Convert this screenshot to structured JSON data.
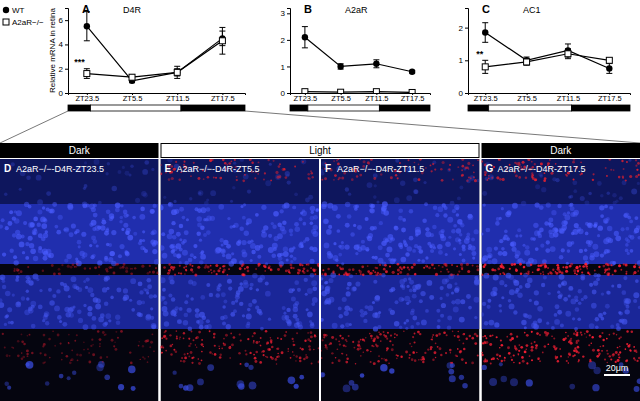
{
  "chart_data": [
    {
      "type": "line",
      "label": "A",
      "title": "D4R",
      "y_label": "Relative mRNA in retina",
      "x": [
        -0.5,
        5.5,
        11.5,
        17.5
      ],
      "xlim": [
        -3,
        20.5
      ],
      "xticks": [
        {
          "value": -0.5,
          "label": "ZT23.5"
        },
        {
          "value": 5.5,
          "label": "ZT5.5"
        },
        {
          "value": 11.5,
          "label": "ZT11.5"
        },
        {
          "value": 17.5,
          "label": "ZT17.5"
        }
      ],
      "ylim": [
        0,
        7
      ],
      "yticks": [
        0,
        2,
        4,
        6
      ],
      "legend": "top-left",
      "light_phases": [
        {
          "state": "dark",
          "start": -3,
          "end": 0
        },
        {
          "state": "light",
          "start": 0,
          "end": 12
        },
        {
          "state": "dark",
          "start": 12,
          "end": 20.5
        }
      ],
      "series": [
        {
          "name": "WT",
          "color": "#000000",
          "marker": "circle",
          "values": [
            5.5,
            1.0,
            1.7,
            4.5
          ],
          "errors": [
            1.2,
            0.15,
            0.5,
            0.6
          ]
        },
        {
          "name": "A2aR−/−",
          "color": "#000000",
          "marker": "open-square",
          "values": [
            1.6,
            1.3,
            1.7,
            4.3
          ],
          "errors": [
            0.4,
            0.2,
            0.3,
            1.1
          ]
        }
      ],
      "annotations": [
        {
          "text": "***",
          "x": -0.5,
          "y": 2.3
        }
      ]
    },
    {
      "type": "line",
      "label": "B",
      "title": "A2aR",
      "x": [
        -0.5,
        5.5,
        11.5,
        17.5
      ],
      "xlim": [
        -3,
        20.5
      ],
      "xticks": [
        {
          "value": -0.5,
          "label": "ZT23.5"
        },
        {
          "value": 5.5,
          "label": "ZT5.5"
        },
        {
          "value": 11.5,
          "label": "ZT11.5"
        },
        {
          "value": 17.5,
          "label": "ZT17.5"
        }
      ],
      "ylim": [
        0,
        3.2
      ],
      "yticks": [
        0,
        1,
        2,
        3
      ],
      "light_phases": [
        {
          "state": "dark",
          "start": -3,
          "end": 0
        },
        {
          "state": "light",
          "start": 0,
          "end": 12
        },
        {
          "state": "dark",
          "start": 12,
          "end": 20.5
        }
      ],
      "series": [
        {
          "color": "#000000",
          "marker": "circle",
          "values": [
            2.1,
            1.0,
            1.1,
            0.8
          ],
          "errors": [
            0.4,
            0.1,
            0.15,
            0.05
          ]
        },
        {
          "color": "#000000",
          "marker": "open-square",
          "values": [
            0.05,
            0.03,
            0.05,
            0.02
          ],
          "errors": [
            0.02,
            0.01,
            0.02,
            0.01
          ]
        }
      ]
    },
    {
      "type": "line",
      "label": "C",
      "title": "AC1",
      "x": [
        -0.5,
        5.5,
        11.5,
        17.5
      ],
      "xlim": [
        -3,
        20.5
      ],
      "xticks": [
        {
          "value": -0.5,
          "label": "ZT23.5"
        },
        {
          "value": 5.5,
          "label": "ZT5.5"
        },
        {
          "value": 11.5,
          "label": "ZT11.5"
        },
        {
          "value": 17.5,
          "label": "ZT17.5"
        }
      ],
      "ylim": [
        0,
        2.6
      ],
      "yticks": [
        0,
        1,
        2
      ],
      "light_phases": [
        {
          "state": "dark",
          "start": -3,
          "end": 0
        },
        {
          "state": "light",
          "start": 0,
          "end": 12
        },
        {
          "state": "dark",
          "start": 12,
          "end": 20.5
        }
      ],
      "series": [
        {
          "color": "#000000",
          "marker": "circle",
          "values": [
            1.85,
            1.0,
            1.3,
            0.75
          ],
          "errors": [
            0.3,
            0.1,
            0.2,
            0.15
          ]
        },
        {
          "color": "#000000",
          "marker": "open-square",
          "values": [
            0.8,
            0.95,
            1.2,
            1.0
          ],
          "errors": [
            0.2,
            0.1,
            0.15,
            0.05
          ]
        }
      ],
      "annotations": [
        {
          "text": "**",
          "x": -0.5,
          "y": 1.1
        }
      ]
    }
  ],
  "light_headers": [
    {
      "text": "Dark",
      "panels": 1,
      "state": "dark"
    },
    {
      "text": "Light",
      "panels": 2,
      "state": "light"
    },
    {
      "text": "Dark",
      "panels": 1,
      "state": "dark"
    }
  ],
  "panels": [
    {
      "letter": "D",
      "title": "A2aR−/−-D4R-ZT23.5"
    },
    {
      "letter": "E",
      "title": "A2aR−/−-D4R-ZT5.5"
    },
    {
      "letter": "F",
      "title": "A2aR−/−-D4R-ZT11.5"
    },
    {
      "letter": "G",
      "title": "A2aR−/−-D4R-ZT17.5"
    }
  ],
  "scale_bar": "20μm"
}
